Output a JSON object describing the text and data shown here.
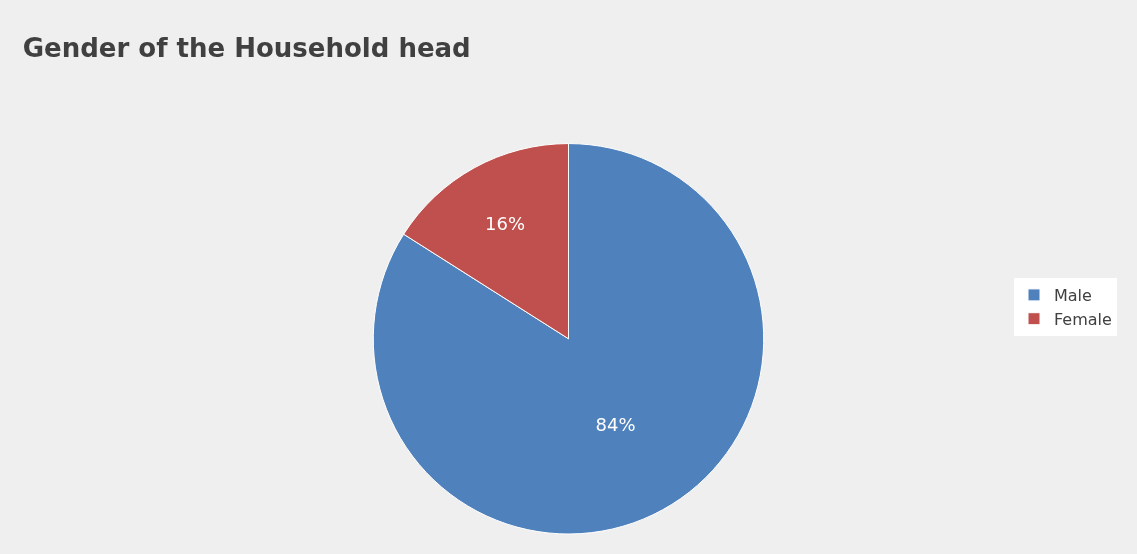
{
  "chart_data": {
    "type": "pie",
    "title": "Gender of the Household head",
    "categories": [
      "Male",
      "Female"
    ],
    "values": [
      84,
      16
    ],
    "colors": [
      "#4f81bd",
      "#c0504d"
    ],
    "value_labels": [
      "84%",
      "16%"
    ],
    "legend": "right"
  }
}
